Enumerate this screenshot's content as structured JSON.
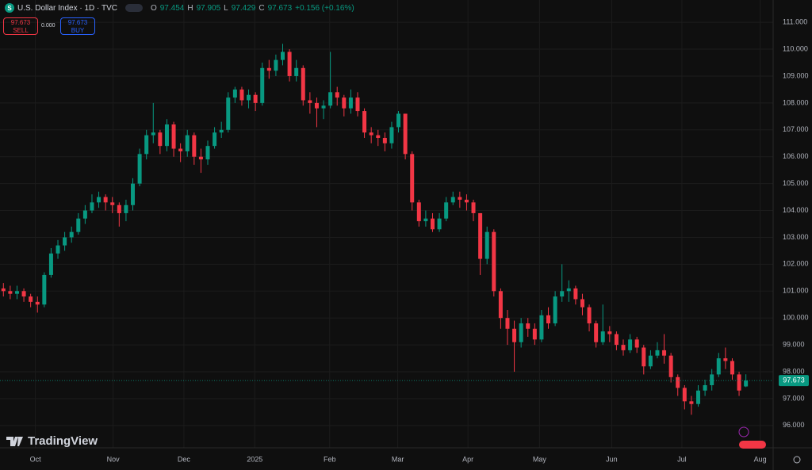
{
  "header": {
    "icon": "S",
    "symbol": "U.S. Dollar Index · 1D · TVC",
    "ohlc_letters": [
      "O",
      "H",
      "L",
      "C"
    ],
    "change": "+0.156 (+0.16%)",
    "sell": "SELL",
    "buy": "BUY",
    "spread": "0.000"
  },
  "brand": "TradingView",
  "chart_data": {
    "type": "candlestick",
    "up_color": "#089981",
    "down_color": "#f23645",
    "grid": true,
    "xlim": [
      -0.5,
      113
    ],
    "xticks": [
      {
        "value": 4.7,
        "label": "Oct"
      },
      {
        "value": 16.1,
        "label": "Nov"
      },
      {
        "value": 26.5,
        "label": "Dec"
      },
      {
        "value": 36.9,
        "label": "2025"
      },
      {
        "value": 47.9,
        "label": "Feb"
      },
      {
        "value": 57.9,
        "label": "Mar"
      },
      {
        "value": 68.2,
        "label": "Apr"
      },
      {
        "value": 78.7,
        "label": "May"
      },
      {
        "value": 89.3,
        "label": "Jun"
      },
      {
        "value": 99.6,
        "label": "Jul"
      },
      {
        "value": 111.1,
        "label": "Aug"
      }
    ],
    "ylim": [
      95.17,
      111.83
    ],
    "yticks": [
      {
        "value": 96,
        "label": "96.000"
      },
      {
        "value": 97,
        "label": "97.000"
      },
      {
        "value": 98,
        "label": "98.000"
      },
      {
        "value": 99,
        "label": "99.000"
      },
      {
        "value": 100,
        "label": "100.000"
      },
      {
        "value": 101,
        "label": "101.000"
      },
      {
        "value": 102,
        "label": "102.000"
      },
      {
        "value": 103,
        "label": "103.000"
      },
      {
        "value": 104,
        "label": "104.000"
      },
      {
        "value": 105,
        "label": "105.000"
      },
      {
        "value": 106,
        "label": "106.000"
      },
      {
        "value": 107,
        "label": "107.000"
      },
      {
        "value": 108,
        "label": "108.000"
      },
      {
        "value": 109,
        "label": "109.000"
      },
      {
        "value": 110,
        "label": "110.000"
      },
      {
        "value": 111,
        "label": "111.000"
      }
    ],
    "open": [
      101.1,
      101.0,
      100.9,
      101.0,
      100.8,
      100.6,
      100.5,
      101.6,
      102.4,
      102.7,
      103.0,
      103.2,
      103.7,
      104.0,
      104.3,
      104.5,
      104.3,
      104.2,
      103.9,
      104.2,
      105.0,
      106.1,
      106.8,
      106.9,
      106.4,
      107.2,
      106.3,
      106.2,
      106.8,
      106.0,
      105.9,
      106.4,
      106.9,
      107.0,
      108.2,
      108.5,
      108.1,
      108.3,
      108.0,
      109.3,
      109.2,
      109.6,
      109.9,
      109.0,
      109.3,
      108.1,
      108.0,
      107.8,
      107.9,
      108.4,
      108.2,
      107.8,
      108.2,
      107.7,
      106.9,
      106.8,
      106.7,
      106.5,
      107.1,
      107.6,
      106.1,
      104.3,
      103.6,
      103.7,
      103.3,
      103.7,
      104.3,
      104.5,
      104.4,
      104.3,
      103.9,
      102.2,
      103.2,
      101.0,
      100.0,
      99.6,
      99.1,
      99.8,
      99.6,
      99.2,
      100.1,
      99.8,
      100.8,
      101.0,
      101.1,
      100.7,
      100.4,
      99.8,
      99.1,
      99.5,
      99.4,
      99.0,
      98.8,
      99.2,
      98.9,
      98.2,
      98.6,
      98.8,
      98.6,
      97.8,
      97.4,
      96.9,
      96.8,
      97.3,
      97.5,
      97.9,
      98.5,
      98.4,
      97.9,
      97.454
    ],
    "high": [
      101.3,
      101.2,
      101.2,
      101.1,
      100.9,
      100.8,
      101.7,
      102.6,
      102.9,
      103.2,
      103.4,
      103.9,
      104.2,
      104.6,
      104.7,
      104.6,
      104.5,
      104.3,
      104.4,
      105.2,
      106.3,
      107.0,
      108.0,
      107.0,
      107.4,
      107.3,
      106.5,
      107.0,
      106.9,
      106.3,
      106.6,
      107.1,
      107.3,
      108.4,
      108.6,
      108.6,
      108.5,
      108.4,
      109.5,
      109.6,
      109.8,
      110.2,
      110.0,
      109.6,
      109.4,
      108.4,
      108.2,
      108.1,
      109.9,
      108.6,
      108.3,
      108.5,
      108.4,
      107.8,
      107.1,
      107.0,
      106.9,
      107.3,
      107.7,
      107.6,
      106.2,
      104.4,
      104.0,
      103.9,
      103.9,
      104.5,
      104.7,
      104.7,
      104.6,
      104.4,
      103.9,
      103.4,
      103.3,
      101.1,
      100.3,
      99.9,
      100.0,
      100.0,
      99.8,
      100.3,
      100.4,
      101.0,
      102.0,
      101.4,
      101.2,
      100.9,
      100.5,
      99.9,
      100.5,
      99.7,
      99.5,
      99.2,
      99.4,
      99.3,
      99.0,
      98.8,
      99.1,
      99.4,
      98.7,
      97.9,
      97.5,
      97.1,
      97.5,
      97.7,
      98.1,
      98.7,
      98.9,
      98.5,
      98.0,
      97.905
    ],
    "low": [
      100.8,
      100.7,
      100.7,
      100.6,
      100.4,
      100.2,
      100.4,
      101.5,
      102.2,
      102.5,
      102.8,
      103.1,
      103.5,
      103.9,
      104.1,
      104.0,
      103.9,
      103.4,
      103.6,
      104.0,
      104.9,
      105.9,
      106.5,
      106.1,
      106.2,
      106.0,
      105.8,
      106.0,
      105.7,
      105.4,
      105.7,
      106.3,
      106.7,
      106.9,
      108.0,
      107.9,
      107.8,
      107.7,
      107.9,
      108.9,
      109.0,
      109.4,
      108.8,
      108.8,
      107.9,
      107.6,
      107.1,
      107.4,
      107.8,
      107.9,
      107.5,
      107.6,
      107.5,
      106.7,
      106.5,
      106.4,
      106.2,
      106.3,
      106.9,
      105.9,
      104.0,
      103.4,
      103.4,
      103.2,
      103.2,
      103.6,
      104.2,
      104.1,
      104.0,
      103.6,
      101.6,
      102.0,
      100.8,
      99.6,
      99.0,
      98.0,
      98.9,
      99.3,
      99.0,
      99.1,
      99.6,
      99.7,
      100.6,
      100.6,
      100.5,
      100.1,
      99.5,
      98.9,
      99.0,
      99.1,
      98.8,
      98.6,
      98.7,
      98.7,
      97.9,
      98.1,
      98.5,
      98.3,
      97.6,
      97.1,
      96.6,
      96.4,
      96.7,
      97.1,
      97.3,
      97.8,
      98.1,
      97.7,
      97.1,
      97.429
    ],
    "close": [
      101.0,
      100.9,
      101.0,
      100.8,
      100.6,
      100.5,
      101.6,
      102.4,
      102.7,
      103.0,
      103.2,
      103.7,
      104.0,
      104.3,
      104.5,
      104.3,
      104.2,
      103.9,
      104.2,
      105.0,
      106.1,
      106.8,
      106.9,
      106.4,
      107.2,
      106.3,
      106.2,
      106.8,
      106.0,
      105.9,
      106.4,
      106.9,
      107.0,
      108.2,
      108.5,
      108.1,
      108.3,
      108.0,
      109.3,
      109.2,
      109.6,
      109.9,
      109.0,
      109.3,
      108.1,
      108.0,
      107.8,
      107.9,
      108.4,
      108.2,
      107.8,
      108.2,
      107.7,
      106.9,
      106.8,
      106.7,
      106.5,
      107.1,
      107.6,
      106.1,
      104.3,
      103.6,
      103.7,
      103.3,
      103.7,
      104.3,
      104.5,
      104.4,
      104.3,
      103.9,
      102.2,
      103.2,
      101.0,
      100.0,
      99.6,
      99.1,
      99.8,
      99.6,
      99.2,
      100.1,
      99.8,
      100.8,
      101.0,
      101.1,
      100.7,
      100.4,
      99.8,
      99.1,
      99.5,
      99.4,
      99.0,
      98.8,
      99.2,
      98.9,
      98.2,
      98.6,
      98.8,
      98.6,
      97.8,
      97.4,
      96.9,
      96.8,
      97.3,
      97.5,
      97.9,
      98.5,
      98.4,
      97.9,
      97.3,
      97.673
    ]
  }
}
